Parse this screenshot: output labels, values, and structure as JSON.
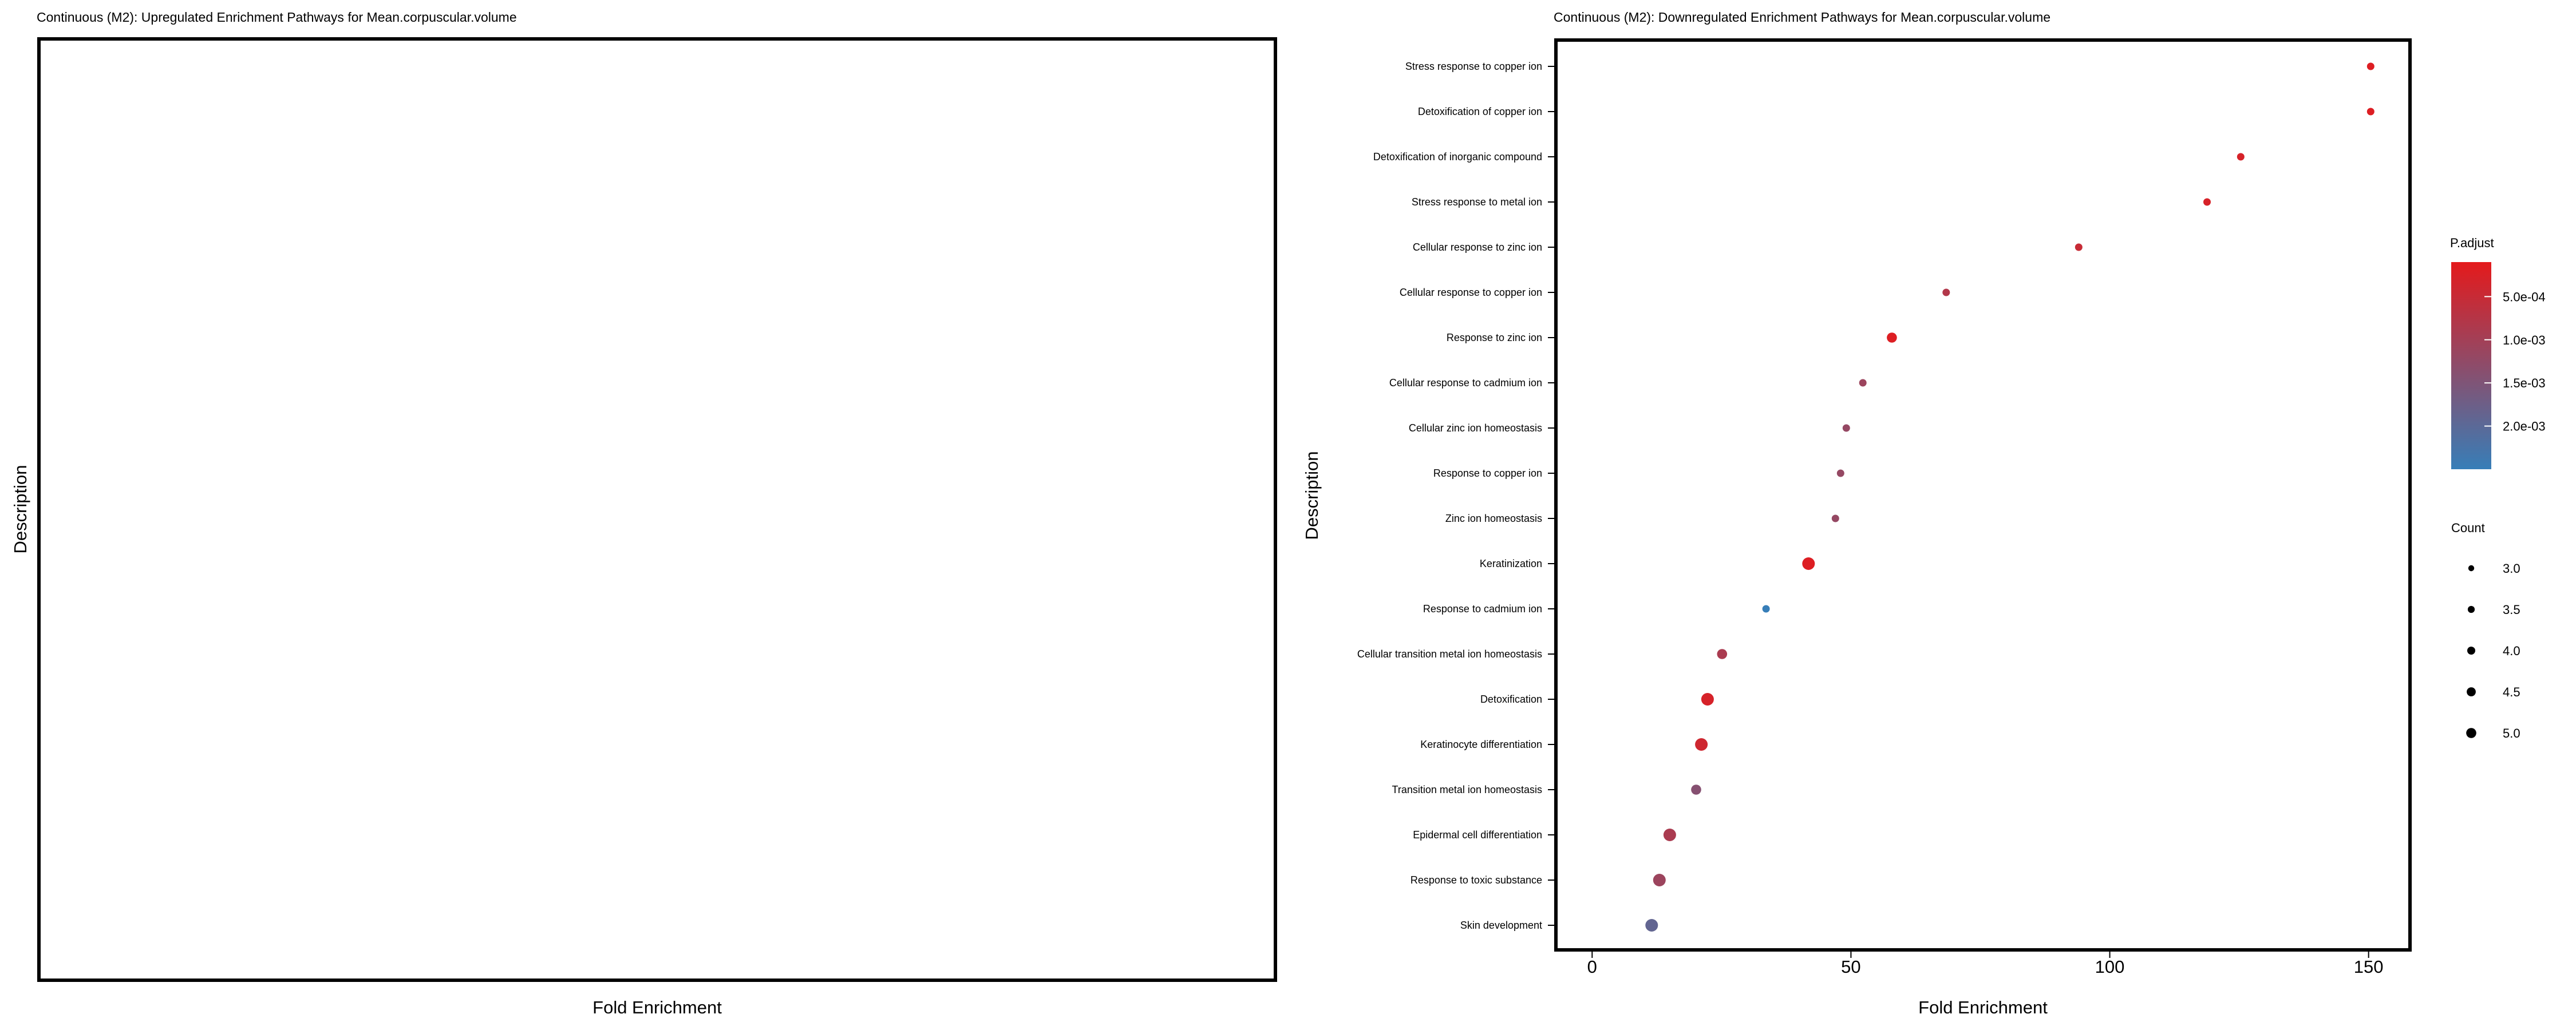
{
  "chart_data": [
    {
      "panel": "left",
      "type": "scatter",
      "title": "Continuous (M2): Upregulated Enrichment Pathways for Mean.corpuscular.volume",
      "xlabel": "Fold Enrichment",
      "ylabel": "Description",
      "categories": [],
      "points": []
    },
    {
      "panel": "right",
      "type": "scatter",
      "title": "Continuous (M2): Downregulated Enrichment Pathways for Mean.corpuscular.volume",
      "xlabel": "Fold Enrichment",
      "ylabel": "Description",
      "xlim": [
        -7,
        158
      ],
      "xticks": [
        0,
        50,
        100,
        150
      ],
      "grid": false,
      "categories": [
        "Stress response to copper ion",
        "Detoxification of copper ion",
        "Detoxification of inorganic compound",
        "Stress response to metal ion",
        "Cellular response to zinc ion",
        "Cellular response to copper ion",
        "Response to zinc ion",
        "Cellular response to cadmium ion",
        "Cellular zinc ion homeostasis",
        "Response to copper ion",
        "Zinc ion homeostasis",
        "Keratinization",
        "Response to cadmium ion",
        "Cellular transition metal ion homeostasis",
        "Detoxification",
        "Keratinocyte differentiation",
        "Transition metal ion homeostasis",
        "Epidermal cell differentiation",
        "Response to toxic substance",
        "Skin development"
      ],
      "points": [
        {
          "label": "Stress response to copper ion",
          "fold_enrichment": 150.4,
          "count": 3,
          "p_adjust": 0.0002
        },
        {
          "label": "Detoxification of copper ion",
          "fold_enrichment": 150.4,
          "count": 3,
          "p_adjust": 0.0002
        },
        {
          "label": "Detoxification of inorganic compound",
          "fold_enrichment": 125.3,
          "count": 3,
          "p_adjust": 0.0003
        },
        {
          "label": "Stress response to metal ion",
          "fold_enrichment": 118.8,
          "count": 3,
          "p_adjust": 0.0003
        },
        {
          "label": "Cellular response to zinc ion",
          "fold_enrichment": 94.0,
          "count": 3,
          "p_adjust": 0.0005
        },
        {
          "label": "Cellular response to copper ion",
          "fold_enrichment": 68.4,
          "count": 3,
          "p_adjust": 0.0008
        },
        {
          "label": "Response to zinc ion",
          "fold_enrichment": 57.9,
          "count": 4,
          "p_adjust": 0.0002
        },
        {
          "label": "Cellular response to cadmium ion",
          "fold_enrichment": 52.3,
          "count": 3,
          "p_adjust": 0.0011
        },
        {
          "label": "Cellular zinc ion homeostasis",
          "fold_enrichment": 49.1,
          "count": 3,
          "p_adjust": 0.0012
        },
        {
          "label": "Response to copper ion",
          "fold_enrichment": 48.0,
          "count": 3,
          "p_adjust": 0.0012
        },
        {
          "label": "Zinc ion homeostasis",
          "fold_enrichment": 47.0,
          "count": 3,
          "p_adjust": 0.0012
        },
        {
          "label": "Keratinization",
          "fold_enrichment": 41.8,
          "count": 5,
          "p_adjust": 0.0002
        },
        {
          "label": "Response to cadmium ion",
          "fold_enrichment": 33.6,
          "count": 3,
          "p_adjust": 0.0025
        },
        {
          "label": "Cellular transition metal ion homeostasis",
          "fold_enrichment": 25.1,
          "count": 4,
          "p_adjust": 0.0009
        },
        {
          "label": "Detoxification",
          "fold_enrichment": 22.3,
          "count": 5,
          "p_adjust": 0.0003
        },
        {
          "label": "Keratinocyte differentiation",
          "fold_enrichment": 21.1,
          "count": 5,
          "p_adjust": 0.0004
        },
        {
          "label": "Transition metal ion homeostasis",
          "fold_enrichment": 20.1,
          "count": 4,
          "p_adjust": 0.0014
        },
        {
          "label": "Epidermal cell differentiation",
          "fold_enrichment": 15.0,
          "count": 5,
          "p_adjust": 0.0009
        },
        {
          "label": "Response to toxic substance",
          "fold_enrichment": 13.0,
          "count": 5,
          "p_adjust": 0.0011
        },
        {
          "label": "Skin development",
          "fold_enrichment": 11.5,
          "count": 5,
          "p_adjust": 0.0019
        }
      ],
      "color_legend": {
        "title": "P.adjust",
        "low_color": "#e41a1c",
        "high_color": "#377eb8",
        "range": [
          0.0001,
          0.0025
        ],
        "ticks": [
          {
            "value": 0.0005,
            "label": "5.0e-04"
          },
          {
            "value": 0.001,
            "label": "1.0e-03"
          },
          {
            "value": 0.0015,
            "label": "1.5e-03"
          },
          {
            "value": 0.002,
            "label": "2.0e-03"
          }
        ]
      },
      "size_legend": {
        "title": "Count",
        "items": [
          {
            "value": 3.0,
            "label": "3.0"
          },
          {
            "value": 3.5,
            "label": "3.5"
          },
          {
            "value": 4.0,
            "label": "4.0"
          },
          {
            "value": 4.5,
            "label": "4.5"
          },
          {
            "value": 5.0,
            "label": "5.0"
          }
        ]
      }
    }
  ]
}
